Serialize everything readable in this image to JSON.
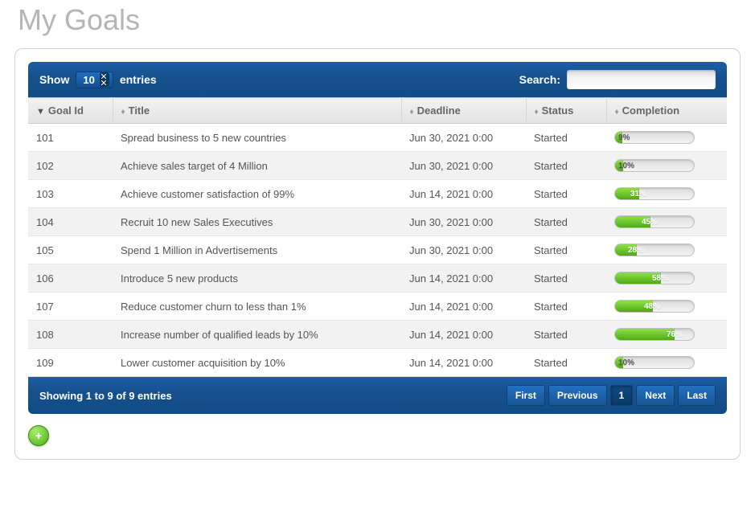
{
  "page": {
    "title": "My Goals"
  },
  "toolbar": {
    "show_label": "Show",
    "entries_label": "entries",
    "page_length": "10",
    "search_label": "Search:",
    "search_value": ""
  },
  "columns": {
    "goal_id": "Goal Id",
    "title": "Title",
    "deadline": "Deadline",
    "status": "Status",
    "completion": "Completion"
  },
  "rows": [
    {
      "id": "101",
      "title": "Spread business to 5 new countries",
      "deadline": "Jun 30, 2021 0:00",
      "status": "Started",
      "completion": 9
    },
    {
      "id": "102",
      "title": "Achieve sales target of 4 Million",
      "deadline": "Jun 30, 2021 0:00",
      "status": "Started",
      "completion": 10
    },
    {
      "id": "103",
      "title": "Achieve customer satisfaction of 99%",
      "deadline": "Jun 14, 2021 0:00",
      "status": "Started",
      "completion": 31
    },
    {
      "id": "104",
      "title": "Recruit 10 new Sales Executives",
      "deadline": "Jun 30, 2021 0:00",
      "status": "Started",
      "completion": 45
    },
    {
      "id": "105",
      "title": "Spend 1 Million in Advertisements",
      "deadline": "Jun 30, 2021 0:00",
      "status": "Started",
      "completion": 28
    },
    {
      "id": "106",
      "title": "Introduce 5 new products",
      "deadline": "Jun 14, 2021 0:00",
      "status": "Started",
      "completion": 58
    },
    {
      "id": "107",
      "title": "Reduce customer churn to less than 1%",
      "deadline": "Jun 14, 2021 0:00",
      "status": "Started",
      "completion": 48
    },
    {
      "id": "108",
      "title": "Increase number of qualified leads by 10%",
      "deadline": "Jun 14, 2021 0:00",
      "status": "Started",
      "completion": 76
    },
    {
      "id": "109",
      "title": "Lower customer acquisition by 10%",
      "deadline": "Jun 14, 2021 0:00",
      "status": "Started",
      "completion": 10
    }
  ],
  "footer": {
    "info": "Showing 1 to 9 of 9 entries",
    "first": "First",
    "previous": "Previous",
    "current_page": "1",
    "next": "Next",
    "last": "Last"
  },
  "add_button_label": "+",
  "colors": {
    "header_gradient_top": "#1b5ea6",
    "header_gradient_bottom": "#114b85",
    "progress_green_top": "#8fe24a",
    "progress_green_bottom": "#4fab14",
    "title_gray": "#b5b5b5"
  }
}
